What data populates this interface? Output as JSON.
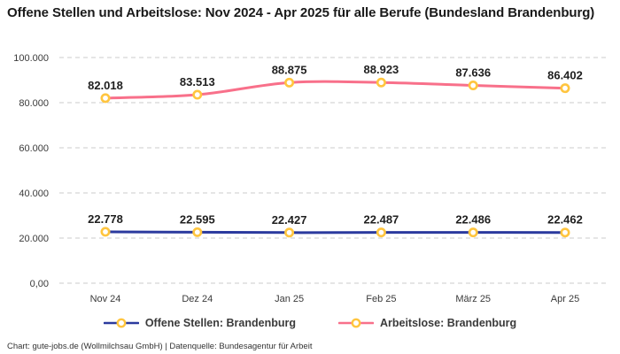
{
  "title": "Offene Stellen und Arbeitslose: Nov 2024 - Apr 2025 für alle Berufe (Bundesland Brandenburg)",
  "footer": "Chart: gute-jobs.de (Wollmilchsau GmbH) | Datenquelle: Bundesagentur für Arbeit",
  "colors": {
    "open_positions_line": "#2B3A9E",
    "unemployed_line": "#F8708A",
    "marker_stroke": "#FFC53F",
    "marker_fill": "#FFFFFF",
    "gridline": "#CBCBCB",
    "title_text": "#1A1A1A",
    "axis_text": "#3A3A3A",
    "data_label_text": "#1F1F1F"
  },
  "chart_data": {
    "type": "line",
    "title": "Offene Stellen und Arbeitslose: Nov 2024 - Apr 2025 für alle Berufe (Bundesland Brandenburg)",
    "categories": [
      "Nov 24",
      "Dez 24",
      "Jan 25",
      "Feb 25",
      "März 25",
      "Apr 25"
    ],
    "series": [
      {
        "name": "Offene Stellen: Brandenburg",
        "color": "#2B3A9E",
        "values": [
          22778,
          22595,
          22427,
          22487,
          22486,
          22462
        ],
        "labels": [
          "22.778",
          "22.595",
          "22.427",
          "22.487",
          "22.486",
          "22.462"
        ]
      },
      {
        "name": "Arbeitslose: Brandenburg",
        "color": "#F8708A",
        "values": [
          82018,
          83513,
          88875,
          88923,
          87636,
          86402
        ],
        "labels": [
          "82.018",
          "83.513",
          "88.875",
          "88.923",
          "87.636",
          "86.402"
        ]
      }
    ],
    "y_ticks": [
      {
        "value": 0,
        "label": "0,00"
      },
      {
        "value": 20000,
        "label": "20.000"
      },
      {
        "value": 40000,
        "label": "40.000"
      },
      {
        "value": 60000,
        "label": "60.000"
      },
      {
        "value": 80000,
        "label": "80.000"
      },
      {
        "value": 100000,
        "label": "100.000"
      }
    ],
    "ylim": [
      0,
      100000
    ],
    "xlabel": "",
    "ylabel": "",
    "grid": "horizontal-dashed",
    "legend_position": "bottom",
    "marker": {
      "fill": "#FFFFFF",
      "stroke": "#FFC53F"
    }
  }
}
